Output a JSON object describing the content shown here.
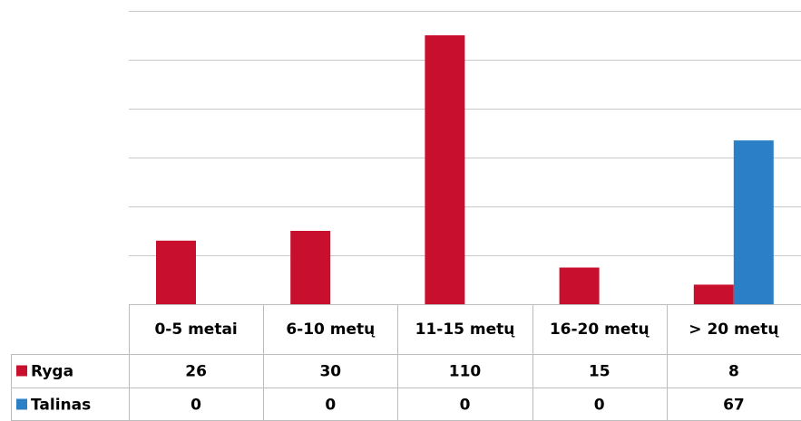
{
  "chart_data": {
    "type": "bar",
    "categories": [
      "0-5 metai",
      "6-10 metų",
      "11-15 metų",
      "16-20 metų",
      "> 20 metų"
    ],
    "series": [
      {
        "name": "Ryga",
        "color": "#c8102e",
        "values": [
          26,
          30,
          110,
          15,
          8
        ]
      },
      {
        "name": "Talinas",
        "color": "#2a7fc6",
        "values": [
          0,
          0,
          0,
          0,
          67
        ]
      }
    ],
    "ylim": [
      0,
      120
    ],
    "grid": true,
    "legend": "data-table-left",
    "data_table": true
  }
}
